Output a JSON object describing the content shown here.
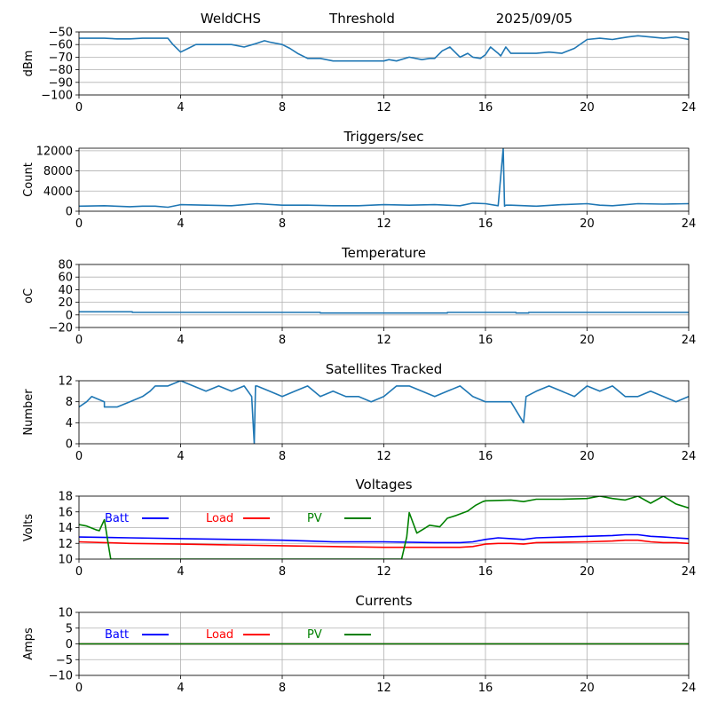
{
  "header": {
    "station": "WeldCHS",
    "mode": "Threshold",
    "date": "2025/09/05"
  },
  "chart_data": [
    {
      "type": "line",
      "title": "",
      "xlabel": "",
      "ylabel": "dBm",
      "xlim": [
        0,
        24
      ],
      "ylim": [
        -100,
        -50
      ],
      "xticks": [
        0,
        4,
        8,
        12,
        16,
        20,
        24
      ],
      "yticks": [
        -100,
        -90,
        -80,
        -70,
        -60,
        -50
      ],
      "grid": true,
      "series": [
        {
          "color": "#1f77b4",
          "x": [
            0,
            0.5,
            1,
            1.5,
            2,
            2.5,
            3,
            3.5,
            3.7,
            4,
            4.3,
            4.6,
            5,
            6,
            6.5,
            7,
            7.3,
            7.5,
            8,
            8.3,
            8.6,
            9,
            9.5,
            10,
            11,
            12,
            12.2,
            12.5,
            13,
            13.5,
            13.8,
            14,
            14.3,
            14.6,
            15,
            15.3,
            15.5,
            15.8,
            16,
            16.2,
            16.5,
            16.6,
            16.8,
            17,
            17.5,
            18,
            18.5,
            19,
            19.5,
            20,
            20.5,
            21,
            21.3,
            21.6,
            22,
            22.5,
            23,
            23.5,
            24
          ],
          "y": [
            -55,
            -55,
            -55,
            -55.5,
            -55.5,
            -55,
            -55,
            -55,
            -60,
            -66,
            -63,
            -60,
            -60,
            -60,
            -62,
            -59,
            -57,
            -58,
            -60,
            -63,
            -67,
            -71,
            -71,
            -73,
            -73,
            -73,
            -72,
            -73,
            -70,
            -72,
            -71,
            -71,
            -65,
            -62,
            -70,
            -67,
            -70,
            -71,
            -68,
            -62,
            -67,
            -69,
            -62,
            -67,
            -67,
            -67,
            -66,
            -67,
            -63,
            -56,
            -55,
            -56,
            -55,
            -54,
            -53,
            -54,
            -55,
            -54,
            -56
          ]
        }
      ]
    },
    {
      "type": "line",
      "title": "Triggers/sec",
      "xlabel": "",
      "ylabel": "Count",
      "xlim": [
        0,
        24
      ],
      "ylim": [
        0,
        12500
      ],
      "xticks": [
        0,
        4,
        8,
        12,
        16,
        20,
        24
      ],
      "yticks": [
        0,
        4000,
        8000,
        12000
      ],
      "grid": true,
      "series": [
        {
          "color": "#1f77b4",
          "x": [
            0,
            1,
            2,
            2.5,
            3,
            3.5,
            4,
            5,
            6,
            7,
            8,
            9,
            10,
            11,
            12,
            13,
            14,
            15,
            15.5,
            16,
            16.5,
            16.7,
            16.75,
            16.8,
            17,
            18,
            19,
            20,
            20.5,
            21,
            22,
            23,
            24
          ],
          "y": [
            1000,
            1100,
            900,
            1000,
            1000,
            800,
            1300,
            1200,
            1100,
            1500,
            1200,
            1200,
            1100,
            1100,
            1300,
            1200,
            1300,
            1100,
            1600,
            1500,
            1100,
            12500,
            1000,
            1200,
            1200,
            1000,
            1300,
            1500,
            1200,
            1100,
            1500,
            1400,
            1500
          ]
        }
      ]
    },
    {
      "type": "line",
      "title": "Temperature",
      "xlabel": "",
      "ylabel": "oC",
      "xlim": [
        0,
        24
      ],
      "ylim": [
        -20,
        80
      ],
      "xticks": [
        0,
        4,
        8,
        12,
        16,
        20,
        24
      ],
      "yticks": [
        -20,
        0,
        20,
        40,
        60,
        80
      ],
      "grid": true,
      "series": [
        {
          "color": "#1f77b4",
          "x": [
            0,
            2.1,
            2.1,
            9.5,
            9.5,
            14.5,
            14.5,
            17.2,
            17.2,
            17.7,
            17.7,
            24
          ],
          "y": [
            5,
            5,
            4,
            4,
            3,
            3,
            4,
            4,
            3,
            3,
            4,
            4
          ]
        }
      ]
    },
    {
      "type": "line",
      "title": "Satellites Tracked",
      "xlabel": "",
      "ylabel": "Number",
      "xlim": [
        0,
        24
      ],
      "ylim": [
        0,
        12
      ],
      "xticks": [
        0,
        4,
        8,
        12,
        16,
        20,
        24
      ],
      "yticks": [
        0,
        4,
        8,
        12
      ],
      "grid": true,
      "series": [
        {
          "color": "#1f77b4",
          "x": [
            0,
            0.3,
            0.5,
            1,
            1,
            1.5,
            2,
            2.5,
            2.8,
            3,
            3.5,
            4,
            4.5,
            5,
            5.5,
            6,
            6.5,
            6.8,
            6.9,
            6.95,
            7,
            7.5,
            8,
            8.5,
            9,
            9.5,
            10,
            10.5,
            11,
            11.5,
            12,
            12.5,
            13,
            13.5,
            14,
            14.5,
            15,
            15.5,
            16,
            16.5,
            17,
            17.5,
            17.6,
            18,
            18.5,
            19,
            19.5,
            20,
            20.5,
            21,
            21.5,
            22,
            22.5,
            23,
            23.5,
            24
          ],
          "y": [
            7,
            8,
            9,
            8,
            7,
            7,
            8,
            9,
            10,
            11,
            11,
            12,
            11,
            10,
            11,
            10,
            11,
            9,
            0,
            11,
            11,
            10,
            9,
            10,
            11,
            9,
            10,
            9,
            9,
            8,
            9,
            11,
            11,
            10,
            9,
            10,
            11,
            9,
            8,
            8,
            8,
            4,
            9,
            10,
            11,
            10,
            9,
            11,
            10,
            11,
            9,
            9,
            10,
            9,
            8,
            9
          ]
        }
      ]
    },
    {
      "type": "line",
      "title": "Voltages",
      "xlabel": "",
      "ylabel": "Volts",
      "xlim": [
        0,
        24
      ],
      "ylim": [
        10,
        18
      ],
      "xticks": [
        0,
        4,
        8,
        12,
        16,
        20,
        24
      ],
      "yticks": [
        10,
        12,
        14,
        16,
        18
      ],
      "grid": true,
      "legend": "top-left",
      "series": [
        {
          "name": "Batt",
          "color": "#0000ff",
          "x": [
            0,
            2,
            4,
            6,
            8,
            9,
            10,
            12,
            14,
            15,
            15.5,
            16,
            16.5,
            17,
            17.5,
            18,
            20,
            21,
            21.5,
            22,
            22.5,
            23,
            23.5,
            24
          ],
          "y": [
            12.8,
            12.7,
            12.6,
            12.5,
            12.4,
            12.3,
            12.2,
            12.2,
            12.1,
            12.1,
            12.2,
            12.5,
            12.7,
            12.6,
            12.5,
            12.7,
            12.9,
            13,
            13.1,
            13.1,
            12.9,
            12.8,
            12.7,
            12.6
          ]
        },
        {
          "name": "Load",
          "color": "#ff0000",
          "x": [
            0,
            1,
            2,
            4,
            6,
            8,
            10,
            12,
            13,
            14,
            15,
            15.5,
            16,
            16.5,
            17,
            17.5,
            18,
            20,
            21,
            21.5,
            22,
            22.5,
            23,
            23.5,
            24
          ],
          "y": [
            12.2,
            12.1,
            12,
            11.9,
            11.8,
            11.7,
            11.6,
            11.5,
            11.5,
            11.5,
            11.5,
            11.6,
            11.9,
            12,
            12,
            11.9,
            12.1,
            12.2,
            12.3,
            12.4,
            12.4,
            12.2,
            12.1,
            12.1,
            12
          ]
        },
        {
          "name": "PV",
          "color": "#008000",
          "x": [
            0,
            0.3,
            0.7,
            0.8,
            1,
            1.2,
            1.25,
            12.7,
            12.9,
            13,
            13.3,
            13.6,
            13.8,
            14.2,
            14.5,
            14.8,
            15.3,
            15.6,
            15.9,
            16,
            17,
            17.5,
            18,
            19,
            20,
            20.5,
            21,
            21.5,
            22,
            22.5,
            23,
            23.5,
            24
          ],
          "y": [
            14.4,
            14.2,
            13.7,
            13.6,
            15,
            11,
            10,
            10,
            12.8,
            15.9,
            13.3,
            13.9,
            14.3,
            14.1,
            15.2,
            15.5,
            16.1,
            16.8,
            17.3,
            17.4,
            17.5,
            17.3,
            17.6,
            17.6,
            17.7,
            18,
            17.7,
            17.5,
            18,
            17.1,
            18,
            17,
            16.5
          ]
        }
      ]
    },
    {
      "type": "line",
      "title": "Currents",
      "xlabel": "",
      "ylabel": "Amps",
      "xlim": [
        0,
        24
      ],
      "ylim": [
        -10,
        10
      ],
      "xticks": [
        0,
        4,
        8,
        12,
        16,
        20,
        24
      ],
      "yticks": [
        -10,
        -5,
        0,
        5,
        10
      ],
      "grid": true,
      "legend": "top-left",
      "series": [
        {
          "name": "Batt",
          "color": "#0000ff",
          "x": [
            0,
            24
          ],
          "y": [
            0,
            0
          ]
        },
        {
          "name": "Load",
          "color": "#ff0000",
          "x": [
            0,
            24
          ],
          "y": [
            0,
            0
          ]
        },
        {
          "name": "PV",
          "color": "#008000",
          "x": [
            0,
            24
          ],
          "y": [
            0,
            0
          ]
        }
      ]
    }
  ]
}
